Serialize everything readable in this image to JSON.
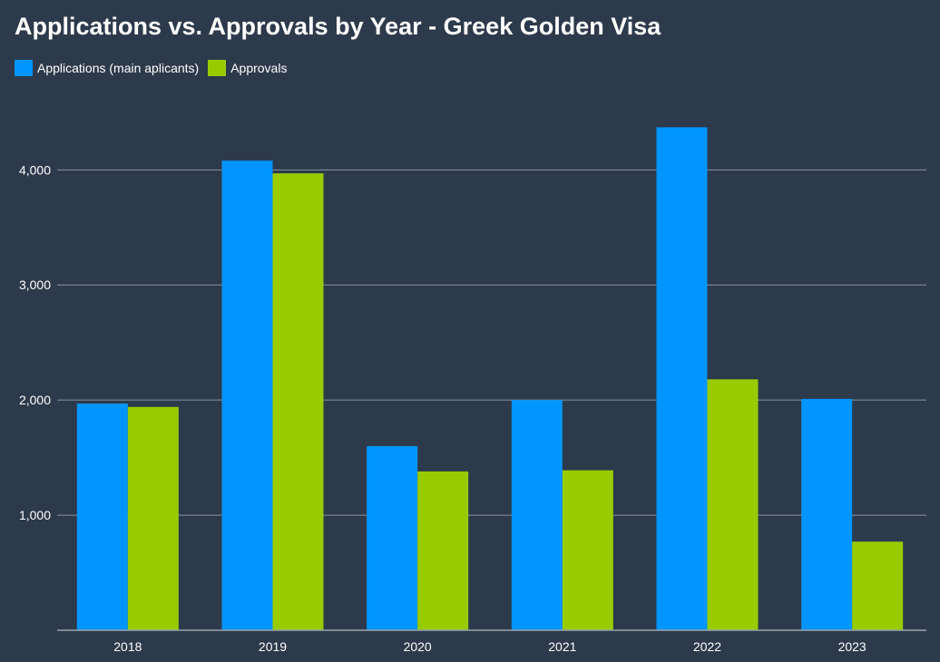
{
  "chart_data": {
    "type": "bar",
    "title": "Applications vs. Approvals by Year - Greek Golden Visa",
    "categories": [
      "2018",
      "2019",
      "2020",
      "2021",
      "2022",
      "2023"
    ],
    "series": [
      {
        "name": "Applications (main aplicants)",
        "color": "#0095ff",
        "values": [
          1970,
          4080,
          1600,
          2000,
          4370,
          2010
        ]
      },
      {
        "name": "Approvals",
        "color": "#99cc00",
        "values": [
          1940,
          3970,
          1380,
          1390,
          2180,
          770
        ]
      }
    ],
    "ylim": [
      0,
      4400
    ],
    "yticks": [
      1000,
      2000,
      3000,
      4000
    ],
    "ytick_labels": [
      "1,000",
      "2,000",
      "3,000",
      "4,000"
    ],
    "xlabel": "",
    "ylabel": "",
    "grid": true,
    "legend": "top-left"
  },
  "colors": {
    "background": "#2d3a4b",
    "gridline": "#8a939f",
    "axis": "#9aa3ad",
    "text": "#ffffff"
  }
}
